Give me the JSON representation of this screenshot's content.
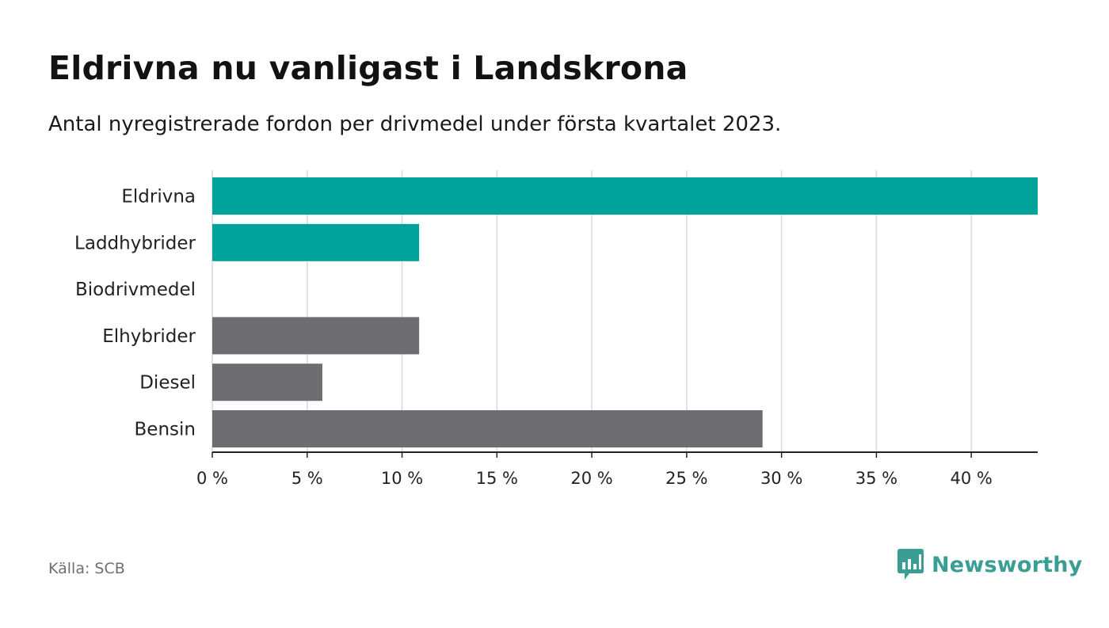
{
  "header": {
    "title": "Eldrivna nu vanligast i Landskrona",
    "subtitle": "Antal nyregistrerade fordon per drivmedel under första kvartalet 2023."
  },
  "footer": {
    "source": "Källa: SCB",
    "brand": "Newsworthy",
    "brand_icon": "bar-chart-speech-bubble-icon"
  },
  "colors": {
    "highlight": "#00a399",
    "default": "#6e6d72",
    "grid": "#d9d9d9",
    "axis": "#222222",
    "brand": "#3a9e94"
  },
  "chart_data": {
    "type": "bar",
    "orientation": "horizontal",
    "categories": [
      "Eldrivna",
      "Laddhybrider",
      "Biodrivmedel",
      "Elhybrider",
      "Diesel",
      "Bensin"
    ],
    "values": [
      43.5,
      10.9,
      0,
      10.9,
      5.8,
      29.0
    ],
    "highlight": [
      true,
      true,
      true,
      false,
      false,
      false
    ],
    "unit": "%",
    "xlim": [
      0,
      43.5
    ],
    "xticks": [
      0,
      5,
      10,
      15,
      20,
      25,
      30,
      35,
      40
    ],
    "xtick_labels": [
      "0 %",
      "5 %",
      "10 %",
      "15 %",
      "20 %",
      "25 %",
      "30 %",
      "35 %",
      "40 %"
    ],
    "grid": true
  }
}
